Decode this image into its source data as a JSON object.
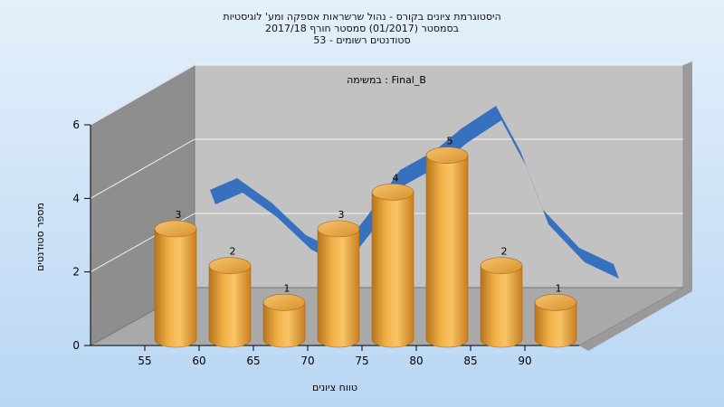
{
  "chart_data": {
    "type": "bar",
    "title_lines": [
      "היסטוגרמת ציונים בקורס - נהול שרשראות אספקה ומע' לוגיסטיות",
      "בסמסטר  (01/2017)  סמסטר חורף  2017/18",
      "סטודנטים רשומים - 53"
    ],
    "subtitle": "במשימה : Final_B",
    "xlabel": "טווח ציונים",
    "ylabel": "מספר סטודנטים",
    "x_ticks": [
      "55",
      "60",
      "65",
      "70",
      "75",
      "80",
      "85",
      "90"
    ],
    "y_ticks": [
      "0",
      "2",
      "4",
      "6"
    ],
    "ylim": [
      0,
      6
    ],
    "values": [
      3,
      2,
      1,
      3,
      4,
      5,
      2,
      1
    ],
    "bar_color": "#e8a33b",
    "curve_color": "#2f6bbf",
    "background_color": "#c8def4",
    "grid": true
  }
}
